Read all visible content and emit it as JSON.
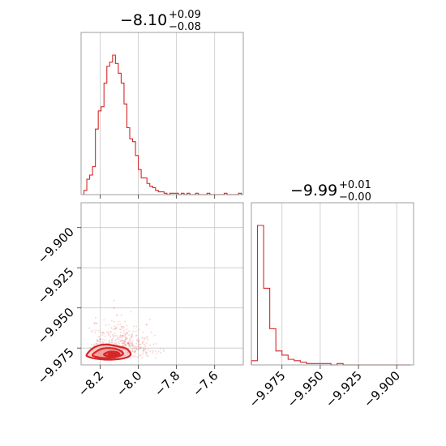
{
  "chart_data": {
    "type": "corner",
    "color": "#d62728",
    "panels": [
      {
        "name": "param1-marginal",
        "type": "histogram-step",
        "title": {
          "median": "−8.10",
          "upper": "+0.09",
          "lower": "−0.08"
        },
        "xlim": [
          -8.3,
          -7.45
        ],
        "x_edges": [
          -8.285,
          -8.27,
          -8.255,
          -8.24,
          -8.225,
          -8.21,
          -8.195,
          -8.18,
          -8.165,
          -8.15,
          -8.135,
          -8.12,
          -8.105,
          -8.09,
          -8.075,
          -8.06,
          -8.045,
          -8.03,
          -8.015,
          -8.0,
          -7.985,
          -7.97,
          -7.955,
          -7.94,
          -7.925,
          -7.91,
          -7.895,
          -7.88,
          -7.865,
          -7.85,
          -7.835,
          -7.82,
          -7.805,
          -7.79,
          -7.775,
          -7.76,
          -7.745,
          -7.73,
          -7.715,
          -7.7,
          -7.685,
          -7.67,
          -7.655,
          -7.64,
          -7.625,
          -7.61,
          -7.595,
          -7.58,
          -7.565,
          -7.55,
          -7.535,
          -7.52,
          -7.505,
          -7.49,
          -7.475,
          -7.46
        ],
        "counts": [
          3,
          11,
          14,
          20,
          47,
          60,
          63,
          80,
          92,
          95,
          100,
          94,
          87,
          80,
          65,
          48,
          40,
          38,
          28,
          18,
          12,
          12,
          8,
          6,
          5,
          3,
          2,
          2,
          1,
          0,
          1,
          1,
          1,
          0,
          1,
          0,
          1,
          0,
          0,
          1,
          0,
          0,
          0,
          1,
          0,
          0,
          0,
          0,
          0,
          1,
          0,
          0,
          0,
          0,
          1
        ]
      },
      {
        "name": "param2-marginal",
        "type": "histogram-step",
        "title": {
          "median": "−9.99",
          "upper": "+0.01",
          "lower": "−0.00"
        },
        "xlim": [
          -9.995,
          -9.889
        ],
        "x_edges": [
          -9.995,
          -9.991,
          -9.987,
          -9.983,
          -9.979,
          -9.975,
          -9.971,
          -9.967,
          -9.963,
          -9.959,
          -9.955,
          -9.951,
          -9.947,
          -9.943,
          -9.939,
          -9.935,
          -9.931,
          -9.927,
          -9.923,
          -9.919,
          -9.915,
          -9.911,
          -9.907,
          -9.903,
          -9.899,
          -9.895,
          -9.891
        ],
        "counts": [
          3,
          100,
          55,
          26,
          10,
          7,
          4,
          3,
          2,
          1,
          1,
          1,
          1,
          0,
          1,
          0,
          0,
          0,
          0,
          0,
          0,
          0,
          0,
          0,
          0,
          0
        ],
        "xticks": [
          "−9.975",
          "−9.950",
          "−9.925",
          "−9.900"
        ]
      },
      {
        "name": "joint-density",
        "type": "scatter-contour",
        "xlim": [
          -8.3,
          -7.45
        ],
        "ylim": [
          -9.9855,
          -9.8845
        ],
        "xticks": [
          "−8.2",
          "−8.0",
          "−7.8",
          "−7.6"
        ],
        "yticks": [
          "−9.900",
          "−9.925",
          "−9.950",
          "−9.975"
        ],
        "contour_levels": [
          {
            "fill": "#f4b5b3",
            "opacity": 0.55,
            "points": [
              [
                -8.27,
                -9.979
              ],
              [
                -8.23,
                -9.9745
              ],
              [
                -8.17,
                -9.9728
              ],
              [
                -8.1,
                -9.9742
              ],
              [
                -8.06,
                -9.9756
              ],
              [
                -8.04,
                -9.979
              ],
              [
                -8.07,
                -9.9812
              ],
              [
                -8.14,
                -9.9822
              ],
              [
                -8.21,
                -9.9818
              ],
              [
                -8.26,
                -9.9805
              ]
            ]
          },
          {
            "fill": "#ee8e8c",
            "opacity": 0.7,
            "points": [
              [
                -8.24,
                -9.9792
              ],
              [
                -8.2,
                -9.9758
              ],
              [
                -8.15,
                -9.975
              ],
              [
                -8.1,
                -9.9763
              ],
              [
                -8.08,
                -9.9787
              ],
              [
                -8.12,
                -9.9807
              ],
              [
                -8.18,
                -9.9812
              ],
              [
                -8.22,
                -9.9805
              ]
            ]
          },
          {
            "fill": "#e0504e",
            "opacity": 0.85,
            "points": [
              [
                -8.18,
                -9.9788
              ],
              [
                -8.15,
                -9.9772
              ],
              [
                -8.11,
                -9.9776
              ],
              [
                -8.1,
                -9.9792
              ],
              [
                -8.14,
                -9.9803
              ],
              [
                -8.17,
                -9.9798
              ]
            ]
          }
        ],
        "peak": [
          -8.13,
          -9.979
        ]
      }
    ]
  }
}
